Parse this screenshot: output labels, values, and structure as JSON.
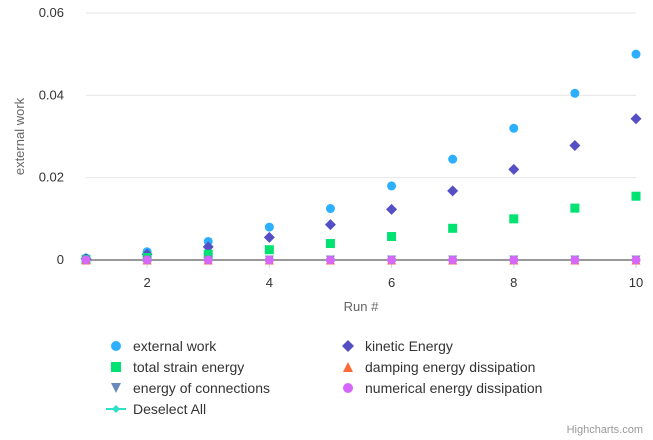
{
  "chart_data": {
    "type": "scatter",
    "xlabel": "Run #",
    "ylabel": "external work",
    "xlim": [
      1,
      10
    ],
    "ylim": [
      0,
      0.06
    ],
    "x_ticks": [
      2,
      4,
      6,
      8,
      10
    ],
    "y_ticks": [
      0,
      0.02,
      0.04,
      0.06
    ],
    "y_tick_labels": [
      "0",
      "0.02",
      "0.04",
      "0.06"
    ],
    "grid": "horizontal",
    "legend_position": "bottom",
    "x": [
      1,
      2,
      3,
      4,
      5,
      6,
      7,
      8,
      9,
      10
    ],
    "series": [
      {
        "name": "external work",
        "symbol": "circle",
        "color": "#2caffe",
        "values": [
          0.0005,
          0.002,
          0.0045,
          0.008,
          0.0125,
          0.018,
          0.0245,
          0.032,
          0.0405,
          0.05
        ]
      },
      {
        "name": "kinetic Energy",
        "symbol": "diamond",
        "color": "#544fc5",
        "values": [
          0.0003,
          0.0014,
          0.0032,
          0.0055,
          0.0086,
          0.0123,
          0.0168,
          0.022,
          0.0278,
          0.0343
        ]
      },
      {
        "name": "total strain energy",
        "symbol": "square",
        "color": "#00e272",
        "values": [
          0.0001,
          0.0006,
          0.0014,
          0.0025,
          0.004,
          0.0057,
          0.0077,
          0.01,
          0.0126,
          0.0155
        ]
      },
      {
        "name": "damping energy dissipation",
        "symbol": "triangle",
        "color": "#fe6a35",
        "values": [
          0,
          0,
          0,
          0,
          0,
          0,
          0,
          0,
          0,
          0
        ]
      },
      {
        "name": "energy of connections",
        "symbol": "triangle-down",
        "color": "#6b8abc",
        "values": [
          0,
          0,
          0,
          0,
          0,
          0,
          0,
          0,
          0,
          0
        ]
      },
      {
        "name": "numerical energy dissipation",
        "symbol": "circle",
        "color": "#d568fb",
        "values": [
          0,
          0,
          0,
          0,
          0,
          0,
          0,
          0,
          0,
          0
        ]
      }
    ]
  },
  "legend": {
    "items": [
      {
        "label": "external work",
        "symbol": "circle",
        "color": "#2caffe"
      },
      {
        "label": "kinetic Energy",
        "symbol": "diamond",
        "color": "#544fc5"
      },
      {
        "label": "total strain energy",
        "symbol": "square",
        "color": "#00e272"
      },
      {
        "label": "damping energy dissipation",
        "symbol": "triangle",
        "color": "#fe6a35"
      },
      {
        "label": "energy of connections",
        "symbol": "triangle-down",
        "color": "#6b8abc"
      },
      {
        "label": "numerical energy dissipation",
        "symbol": "circle",
        "color": "#d568fb"
      },
      {
        "label": "Deselect All",
        "symbol": "line-marker",
        "color": "#2ee0ca"
      }
    ]
  },
  "credits": {
    "text": "Highcharts.com"
  }
}
